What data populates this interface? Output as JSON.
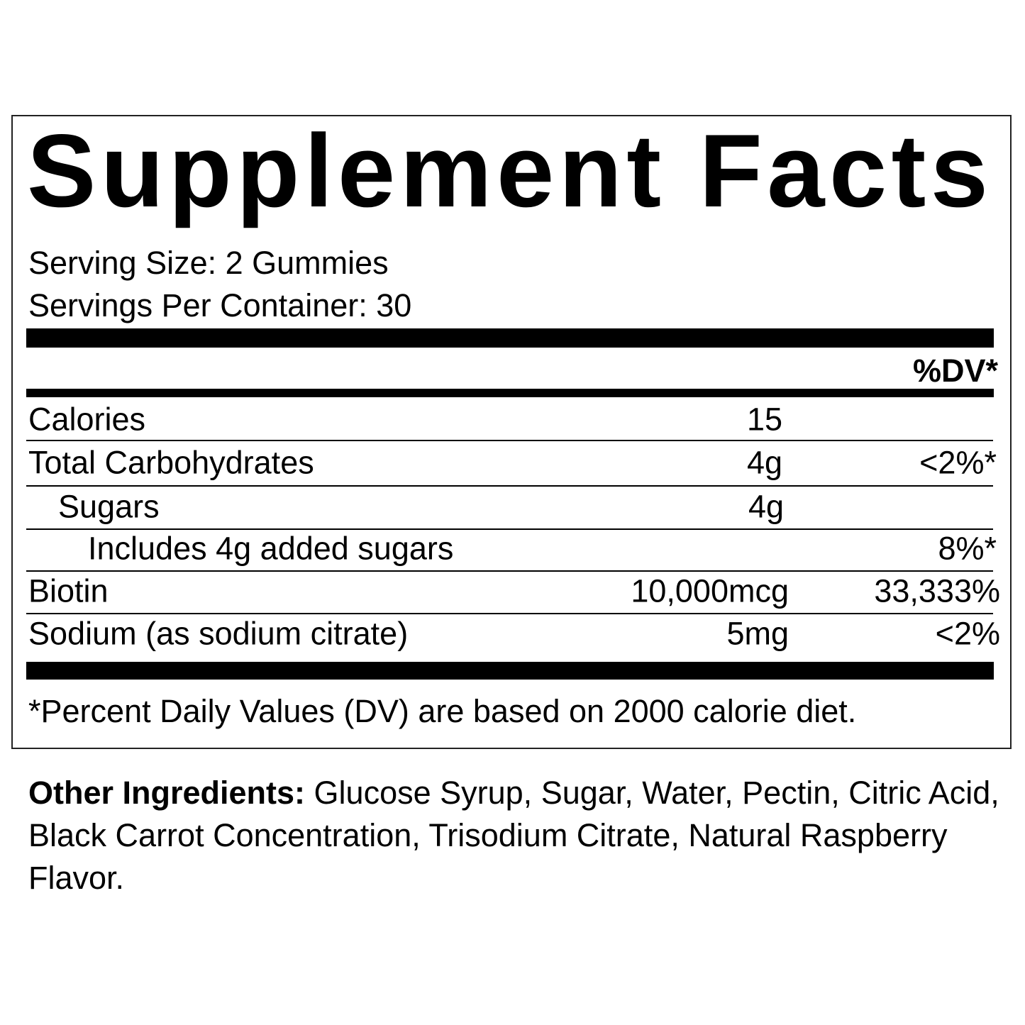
{
  "title": "Supplement Facts",
  "serving_size": "Serving Size: 2 Gummies",
  "servings_per_container": "Servings Per Container: 30",
  "dv_header": "%DV*",
  "rows": [
    {
      "name": "Calories",
      "amount": "15",
      "dv": ""
    },
    {
      "name": "Total Carbohydrates",
      "amount": "4g",
      "dv": "<2%*"
    },
    {
      "name": "Sugars",
      "amount": "4g",
      "dv": ""
    },
    {
      "name": "Includes 4g added sugars",
      "amount": "",
      "dv": "8%*"
    },
    {
      "name": "Biotin",
      "amount": "10,000mcg",
      "dv": "33,333%"
    },
    {
      "name": "Sodium (as sodium citrate)",
      "amount": "5mg",
      "dv": "<2%"
    }
  ],
  "footnote": "*Percent Daily Values (DV) are based on 2000 calorie diet.",
  "other_ingredients": {
    "label": "Other Ingredients:",
    "text": " Glucose Syrup, Sugar, Water, Pectin, Citric Acid, Black Carrot Concentration, Trisodium Citrate, Natural Raspberry Flavor."
  }
}
